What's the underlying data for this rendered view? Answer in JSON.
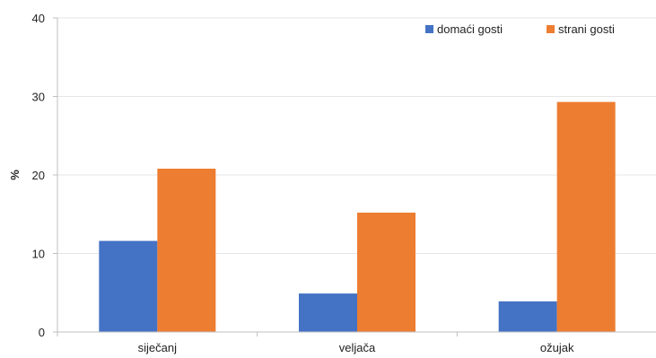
{
  "chart_data": {
    "type": "bar",
    "categories": [
      "siječanj",
      "veljača",
      "ožujak"
    ],
    "series": [
      {
        "name": "domaći gosti",
        "values": [
          11.6,
          4.9,
          3.9
        ],
        "color": "#4472C4"
      },
      {
        "name": "strani gosti",
        "values": [
          20.8,
          15.2,
          29.3
        ],
        "color": "#ED7D31"
      }
    ],
    "xlabel": "",
    "ylabel": "%",
    "ylim": [
      0,
      40
    ],
    "yticks": [
      0,
      10,
      20,
      30,
      40
    ],
    "grid": false,
    "legend_position": "top-right"
  }
}
